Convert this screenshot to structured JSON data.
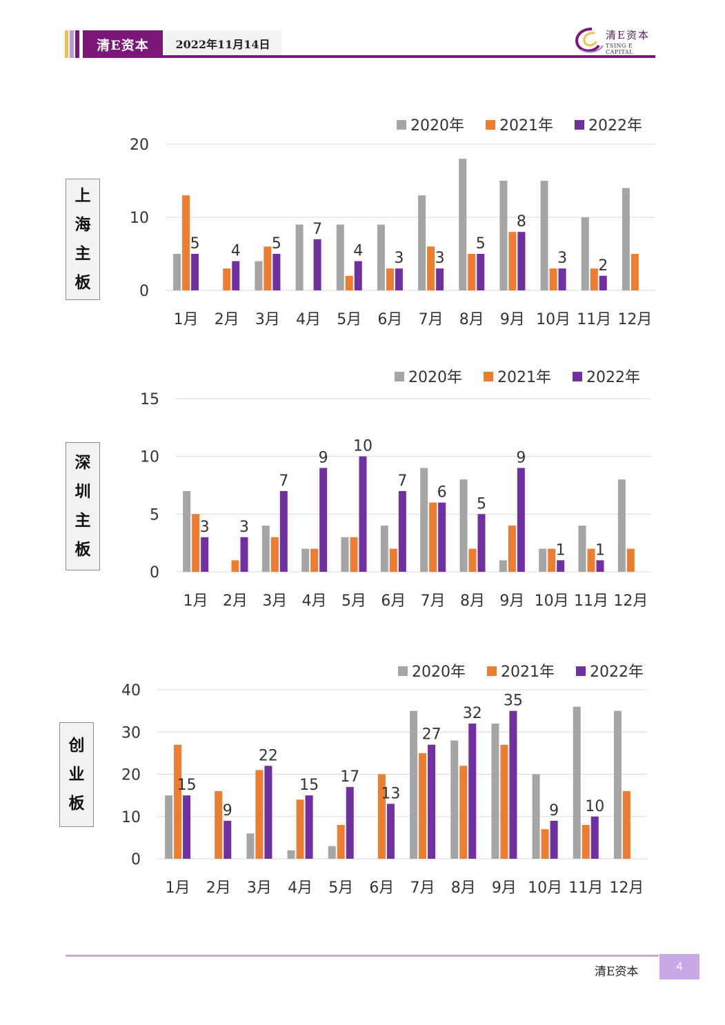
{
  "header": {
    "brand": "清E资本",
    "date": "2022年11月14日",
    "logo_cn": "清E资本",
    "logo_en": "TSING E CAPITAL",
    "colors": {
      "purple": "#7a1779",
      "gold": "#f0c24b",
      "lavender": "#9b7fc8"
    }
  },
  "footer": {
    "brand": "清E资本",
    "page": "4"
  },
  "boards": [
    {
      "label": [
        "上",
        "海",
        "主",
        "板"
      ]
    },
    {
      "label": [
        "深",
        "圳",
        "主",
        "板"
      ]
    },
    {
      "label": [
        "创",
        "业",
        "板"
      ]
    }
  ],
  "chart_data": [
    {
      "type": "bar",
      "categories": [
        "1月",
        "2月",
        "3月",
        "4月",
        "5月",
        "6月",
        "7月",
        "8月",
        "9月",
        "10月",
        "11月",
        "12月"
      ],
      "series": [
        {
          "name": "2020年",
          "color": "#a5a5a5",
          "values": [
            5,
            0,
            4,
            9,
            9,
            9,
            13,
            18,
            15,
            15,
            10,
            14
          ]
        },
        {
          "name": "2021年",
          "color": "#ed7d31",
          "values": [
            13,
            3,
            6,
            0,
            2,
            3,
            6,
            5,
            8,
            3,
            3,
            5
          ]
        },
        {
          "name": "2022年",
          "color": "#7030a0",
          "values": [
            5,
            4,
            5,
            7,
            4,
            3,
            3,
            5,
            8,
            3,
            2,
            null
          ],
          "data_labels": true
        }
      ],
      "yticks": [
        0,
        10,
        20
      ],
      "ylim": [
        0,
        20
      ],
      "grid": true,
      "legend": "top-right"
    },
    {
      "type": "bar",
      "categories": [
        "1月",
        "2月",
        "3月",
        "4月",
        "5月",
        "6月",
        "7月",
        "8月",
        "9月",
        "10月",
        "11月",
        "12月"
      ],
      "series": [
        {
          "name": "2020年",
          "color": "#a5a5a5",
          "values": [
            7,
            0,
            4,
            2,
            3,
            4,
            9,
            8,
            1,
            2,
            4,
            8
          ]
        },
        {
          "name": "2021年",
          "color": "#ed7d31",
          "values": [
            5,
            1,
            3,
            2,
            3,
            2,
            6,
            2,
            4,
            2,
            2,
            2
          ]
        },
        {
          "name": "2022年",
          "color": "#7030a0",
          "values": [
            3,
            3,
            7,
            9,
            10,
            7,
            6,
            5,
            9,
            1,
            1,
            null
          ],
          "data_labels": true
        }
      ],
      "yticks": [
        0,
        5,
        10,
        15
      ],
      "ylim": [
        0,
        15
      ],
      "grid": true,
      "legend": "top-right"
    },
    {
      "type": "bar",
      "categories": [
        "1月",
        "2月",
        "3月",
        "4月",
        "5月",
        "6月",
        "7月",
        "8月",
        "9月",
        "10月",
        "11月",
        "12月"
      ],
      "series": [
        {
          "name": "2020年",
          "color": "#a5a5a5",
          "values": [
            15,
            0,
            6,
            2,
            3,
            0,
            35,
            28,
            32,
            20,
            36,
            35
          ]
        },
        {
          "name": "2021年",
          "color": "#ed7d31",
          "values": [
            27,
            16,
            21,
            14,
            8,
            20,
            25,
            22,
            27,
            7,
            8,
            16
          ]
        },
        {
          "name": "2022年",
          "color": "#7030a0",
          "values": [
            15,
            9,
            22,
            15,
            17,
            13,
            27,
            32,
            35,
            9,
            10,
            null
          ],
          "data_labels": true
        }
      ],
      "yticks": [
        0,
        10,
        20,
        30,
        40
      ],
      "ylim": [
        0,
        40
      ],
      "grid": true,
      "legend": "top-right"
    }
  ]
}
